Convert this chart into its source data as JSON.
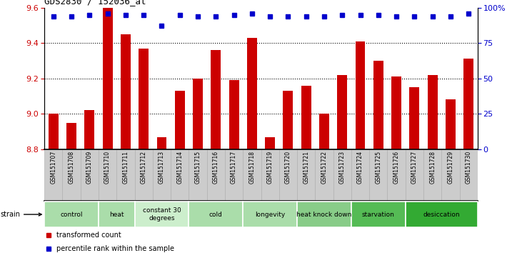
{
  "title": "GDS2830 / 152036_at",
  "samples": [
    "GSM151707",
    "GSM151708",
    "GSM151709",
    "GSM151710",
    "GSM151711",
    "GSM151712",
    "GSM151713",
    "GSM151714",
    "GSM151715",
    "GSM151716",
    "GSM151717",
    "GSM151718",
    "GSM151719",
    "GSM151720",
    "GSM151721",
    "GSM151722",
    "GSM151723",
    "GSM151724",
    "GSM151725",
    "GSM151726",
    "GSM151727",
    "GSM151728",
    "GSM151729",
    "GSM151730"
  ],
  "values": [
    9.0,
    8.95,
    9.02,
    9.6,
    9.45,
    9.37,
    8.87,
    9.13,
    9.2,
    9.36,
    9.19,
    9.43,
    8.87,
    9.13,
    9.16,
    9.0,
    9.22,
    9.41,
    9.3,
    9.21,
    9.15,
    9.22,
    9.08,
    9.31
  ],
  "percentile_values": [
    94,
    94,
    95,
    96,
    95,
    95,
    87,
    95,
    94,
    94,
    95,
    96,
    94,
    94,
    94,
    94,
    95,
    95,
    95,
    94,
    94,
    94,
    94,
    96
  ],
  "bar_color": "#cc0000",
  "dot_color": "#0000cc",
  "ylim": [
    8.8,
    9.6
  ],
  "y_ticks_left": [
    8.8,
    9.0,
    9.2,
    9.4,
    9.6
  ],
  "y_ticks_right": [
    0,
    25,
    50,
    75,
    100
  ],
  "grid_values": [
    9.0,
    9.2,
    9.4
  ],
  "groups": [
    {
      "label": "control",
      "start": 0,
      "end": 2,
      "color": "#aaddaa"
    },
    {
      "label": "heat",
      "start": 3,
      "end": 4,
      "color": "#aaddaa"
    },
    {
      "label": "constant 30\ndegrees",
      "start": 5,
      "end": 7,
      "color": "#cceecc"
    },
    {
      "label": "cold",
      "start": 8,
      "end": 10,
      "color": "#aaddaa"
    },
    {
      "label": "longevity",
      "start": 11,
      "end": 13,
      "color": "#aaddaa"
    },
    {
      "label": "heat knock down",
      "start": 14,
      "end": 16,
      "color": "#88cc88"
    },
    {
      "label": "starvation",
      "start": 17,
      "end": 19,
      "color": "#55bb55"
    },
    {
      "label": "desiccation",
      "start": 20,
      "end": 23,
      "color": "#33aa33"
    }
  ],
  "legend_items": [
    {
      "label": "transformed count",
      "color": "#cc0000"
    },
    {
      "label": "percentile rank within the sample",
      "color": "#0000cc"
    }
  ],
  "background_color": "#ffffff",
  "tick_label_color": "#cc0000",
  "right_tick_color": "#0000cc",
  "sample_box_color": "#cccccc",
  "sample_box_border": "#aaaaaa"
}
